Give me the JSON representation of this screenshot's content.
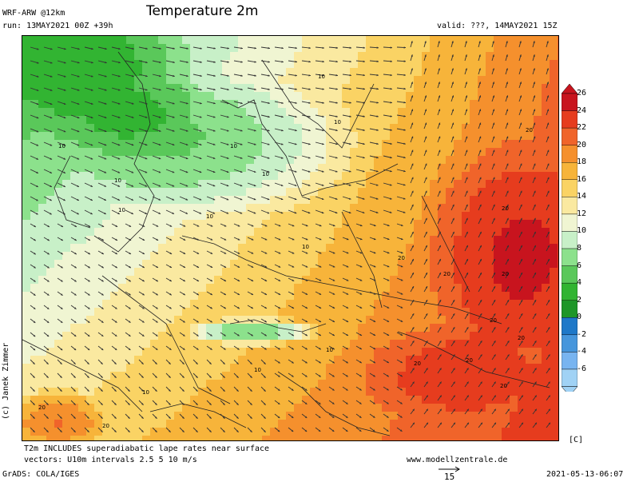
{
  "header": {
    "model": "WRF-ARW @12km",
    "run": "run: 13MAY2021 00Z +39h",
    "title": "Temperature 2m",
    "valid": "valid: ???, 14MAY2021 15Z"
  },
  "colorbar": {
    "unit": "[C]",
    "levels": [
      "26",
      "24",
      "22",
      "20",
      "18",
      "16",
      "14",
      "12",
      "10",
      "8",
      "6",
      "4",
      "2",
      "0",
      "-2",
      "-4",
      "-6"
    ],
    "colors": [
      "#c8141e",
      "#e63c1e",
      "#f0642a",
      "#f5902d",
      "#f7b43a",
      "#fad364",
      "#fae9a0",
      "#f0f5d2",
      "#c8f0c8",
      "#8ce18c",
      "#5ac85a",
      "#32b432",
      "#1e9628",
      "#1e78c8",
      "#4696dc",
      "#78b4f0",
      "#a0d2f5"
    ]
  },
  "map": {
    "contour_labels": [
      "10",
      "10",
      "10",
      "10",
      "10",
      "10",
      "10",
      "10",
      "10",
      "20",
      "20",
      "20",
      "20",
      "20",
      "20",
      "20",
      "20",
      "20",
      "10",
      "10",
      "10",
      "20",
      "20",
      "20"
    ]
  },
  "footer": {
    "note_line1": "T2m INCLUDES superadiabatic lape rates near surface",
    "note_line2": "vectors: U10m intervals 2.5 5 10 m/s",
    "website": "www.modellzentrale.de",
    "grads": "GrADS: COLA/IGES",
    "vector_ref": "15",
    "timestamp": "2021-05-13-06:07",
    "credit": "(c) Janek Zimmer"
  }
}
